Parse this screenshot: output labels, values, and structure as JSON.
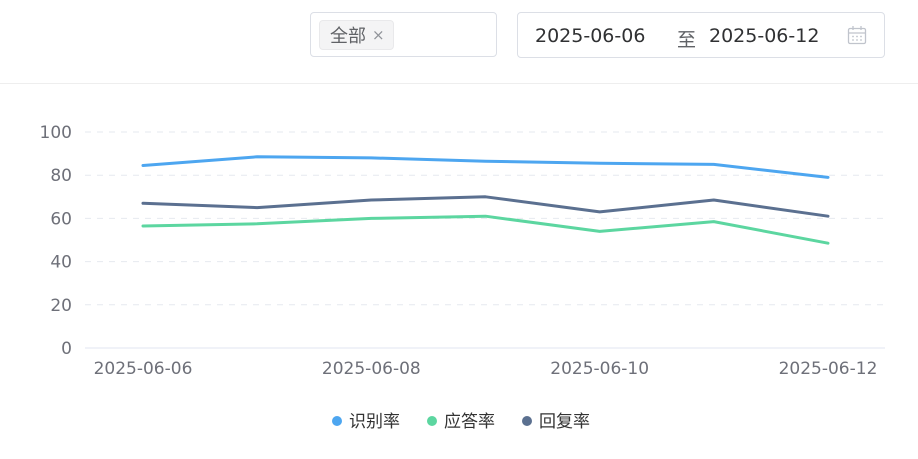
{
  "filters": {
    "category_tag": "全部",
    "tag_close": "×",
    "date_start": "2025-06-06",
    "date_separator": "至",
    "date_end": "2025-06-12"
  },
  "chart_data": {
    "type": "line",
    "x": [
      "2025-06-06",
      "2025-06-07",
      "2025-06-08",
      "2025-06-09",
      "2025-06-10",
      "2025-06-11",
      "2025-06-12"
    ],
    "x_tick_labels": [
      "2025-06-06",
      "2025-06-08",
      "2025-06-10",
      "2025-06-12"
    ],
    "ylim": [
      0,
      100
    ],
    "y_ticks": [
      0,
      20,
      40,
      60,
      80,
      100
    ],
    "grid": true,
    "legend_position": "bottom",
    "series": [
      {
        "name": "识别率",
        "color": "#4da6f0",
        "values": [
          84.5,
          88.5,
          88,
          86.5,
          85.5,
          85,
          79
        ]
      },
      {
        "name": "应答率",
        "color": "#5cd6a0",
        "values": [
          56.5,
          57.5,
          60,
          61,
          54,
          58.5,
          48.5
        ]
      },
      {
        "name": "回复率",
        "color": "#5b7090",
        "values": [
          67,
          65,
          68.5,
          70,
          63,
          68.5,
          61
        ]
      }
    ]
  }
}
